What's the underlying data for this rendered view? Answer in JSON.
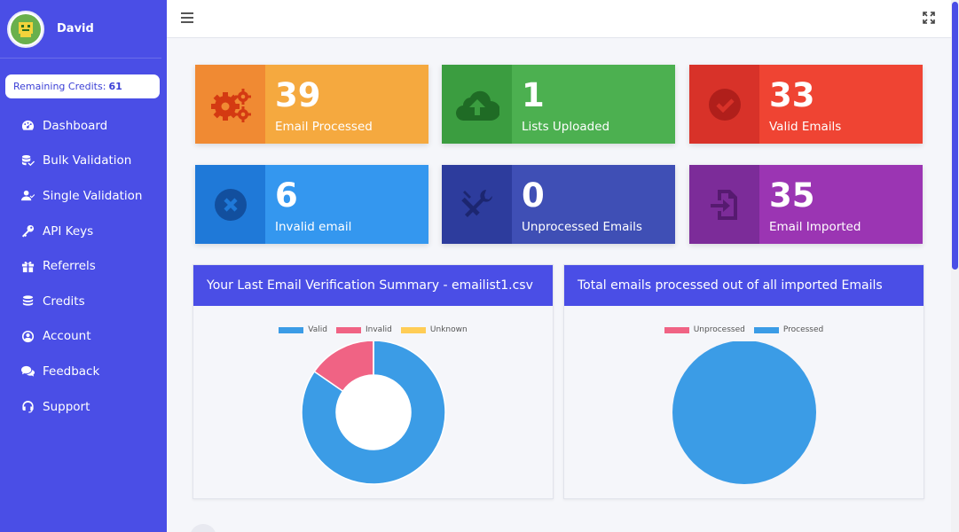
{
  "user": {
    "name": "David"
  },
  "credits": {
    "label": "Remaining Credits:",
    "value": "61"
  },
  "nav": [
    {
      "label": "Dashboard",
      "icon": "gauge-icon"
    },
    {
      "label": "Bulk Validation",
      "icon": "database-check-icon"
    },
    {
      "label": "Single Validation",
      "icon": "user-check-icon"
    },
    {
      "label": "API Keys",
      "icon": "key-icon"
    },
    {
      "label": "Referrels",
      "icon": "gift-icon"
    },
    {
      "label": "Credits",
      "icon": "coins-icon"
    },
    {
      "label": "Account",
      "icon": "user-circle-icon"
    },
    {
      "label": "Feedback",
      "icon": "comments-icon"
    },
    {
      "label": "Support",
      "icon": "headset-icon"
    }
  ],
  "stats": [
    {
      "value": "39",
      "label": "Email Processed",
      "icon": "cogs-icon",
      "color": "#f5a93f",
      "icon_bg": "#f08a33"
    },
    {
      "value": "1",
      "label": "Lists Uploaded",
      "icon": "cloud-upload-icon",
      "color": "#4cb050",
      "icon_bg": "#3b9d40"
    },
    {
      "value": "33",
      "label": "Valid Emails",
      "icon": "check-circle-icon",
      "color": "#ef4433",
      "icon_bg": "#d83229"
    },
    {
      "value": "6",
      "label": "Invalid email",
      "icon": "x-circle-icon",
      "color": "#3497ef",
      "icon_bg": "#1f79d8"
    },
    {
      "value": "0",
      "label": "Unprocessed Emails",
      "icon": "tools-icon",
      "color": "#3f4fb5",
      "icon_bg": "#2d3c9d"
    },
    {
      "value": "35",
      "label": "Email Imported",
      "icon": "file-import-icon",
      "color": "#9b35b3",
      "icon_bg": "#7c2c99"
    }
  ],
  "panels": {
    "summary": {
      "title": "Your Last Email Verification Summary - emailist1.csv",
      "legend": [
        "Valid",
        "Invalid",
        "Unknown"
      ]
    },
    "processed": {
      "title": "Total emails processed out of all imported Emails",
      "legend": [
        "Unprocessed",
        "Processed"
      ]
    }
  },
  "chart_data": [
    {
      "type": "pie",
      "variant": "doughnut",
      "categories": [
        "Valid",
        "Invalid",
        "Unknown"
      ],
      "values": [
        33,
        6,
        0
      ],
      "colors": [
        "#3b9ce6",
        "#f06384",
        "#ffcd56"
      ],
      "title": "Your Last Email Verification Summary - emailist1.csv",
      "legend_position": "top"
    },
    {
      "type": "pie",
      "categories": [
        "Unprocessed",
        "Processed"
      ],
      "values": [
        0,
        39
      ],
      "colors": [
        "#f06384",
        "#3b9ce6"
      ],
      "title": "Total emails processed out of all imported Emails",
      "legend_position": "top"
    }
  ],
  "colors": {
    "sidebar": "#4a4ee6",
    "accent": "#4a4ee6"
  }
}
